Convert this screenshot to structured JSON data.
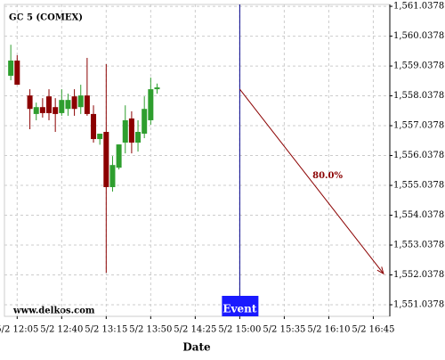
{
  "chart_data": {
    "type": "candlestick",
    "title": "GC 5 (COMEX)",
    "xlabel": "Date",
    "watermark": "www.delkos.com",
    "event_label": "Event",
    "event_x": "5/2 15:00",
    "xlim": [
      "5/2 11:55",
      "5/2 16:58"
    ],
    "xticks": [
      "5/2 12:05",
      "5/2 12:40",
      "5/2 13:15",
      "5/2 13:50",
      "5/2 14:25",
      "5/2 15:00",
      "5/2 15:35",
      "5/2 16:10",
      "5/2 16:45"
    ],
    "ylim": [
      1550.65,
      1561.1
    ],
    "yticks": [
      {
        "value": 1551.0378,
        "label": "1,551.0378"
      },
      {
        "value": 1552.0378,
        "label": "1,552.0378"
      },
      {
        "value": 1553.0378,
        "label": "1,553.0378"
      },
      {
        "value": 1554.0378,
        "label": "1,554.0378"
      },
      {
        "value": 1555.0378,
        "label": "1,555.0378"
      },
      {
        "value": 1556.0378,
        "label": "1,556.0378"
      },
      {
        "value": 1557.0378,
        "label": "1,557.0378"
      },
      {
        "value": 1558.0378,
        "label": "1,558.0378"
      },
      {
        "value": 1559.0378,
        "label": "1,559.0378"
      },
      {
        "value": 1560.0378,
        "label": "1,560.0378"
      },
      {
        "value": 1561.0378,
        "label": "1,561.0378"
      }
    ],
    "grid": true,
    "up_color": "#2e9e2e",
    "down_color": "#8b0000",
    "event_color": "#00008b",
    "event_box_color": "#1a1aff",
    "projection_color": "#8b0000",
    "x": [
      "5/2 12:00",
      "5/2 12:05",
      "5/2 12:15",
      "5/2 12:20",
      "5/2 12:25",
      "5/2 12:30",
      "5/2 12:35",
      "5/2 12:40",
      "5/2 12:45",
      "5/2 12:50",
      "5/2 12:55",
      "5/2 13:00",
      "5/2 13:05",
      "5/2 13:10",
      "5/2 13:15",
      "5/2 13:20",
      "5/2 13:25",
      "5/2 13:30",
      "5/2 13:35",
      "5/2 13:40",
      "5/2 13:45",
      "5/2 13:50",
      "5/2 13:55"
    ],
    "open": [
      1558.71,
      1559.22,
      1558.05,
      1557.43,
      1557.66,
      1558.02,
      1557.66,
      1557.46,
      1557.6,
      1558.02,
      1557.66,
      1558.05,
      1557.43,
      1556.59,
      1556.83,
      1554.98,
      1555.63,
      1556.47,
      1557.28,
      1556.47,
      1556.77,
      1557.22,
      1558.26
    ],
    "high": [
      1559.75,
      1559.4,
      1558.26,
      1557.81,
      1557.96,
      1558.26,
      1557.96,
      1558.26,
      1558.11,
      1558.26,
      1558.41,
      1559.31,
      1557.72,
      1556.77,
      1559.1,
      1556.02,
      1556.41,
      1557.72,
      1557.52,
      1557.22,
      1558.02,
      1558.65,
      1558.45
    ],
    "low": [
      1558.56,
      1558.41,
      1556.92,
      1557.22,
      1557.31,
      1557.22,
      1556.83,
      1557.37,
      1557.37,
      1557.37,
      1557.43,
      1557.37,
      1556.47,
      1556.4,
      1552.11,
      1554.83,
      1555.57,
      1556.11,
      1556.11,
      1556.17,
      1556.62,
      1557.07,
      1558.11
    ],
    "close": [
      1559.22,
      1558.41,
      1557.6,
      1557.66,
      1557.46,
      1557.46,
      1557.43,
      1557.9,
      1557.9,
      1557.6,
      1558.05,
      1557.43,
      1556.59,
      1556.77,
      1554.98,
      1555.72,
      1556.41,
      1557.22,
      1556.47,
      1556.83,
      1557.6,
      1558.26,
      1558.32
    ],
    "projection": {
      "label": "80.0%",
      "x": [
        "5/2 15:00",
        "5/2 16:53"
      ],
      "y": [
        1558.26,
        1552.08
      ]
    }
  }
}
